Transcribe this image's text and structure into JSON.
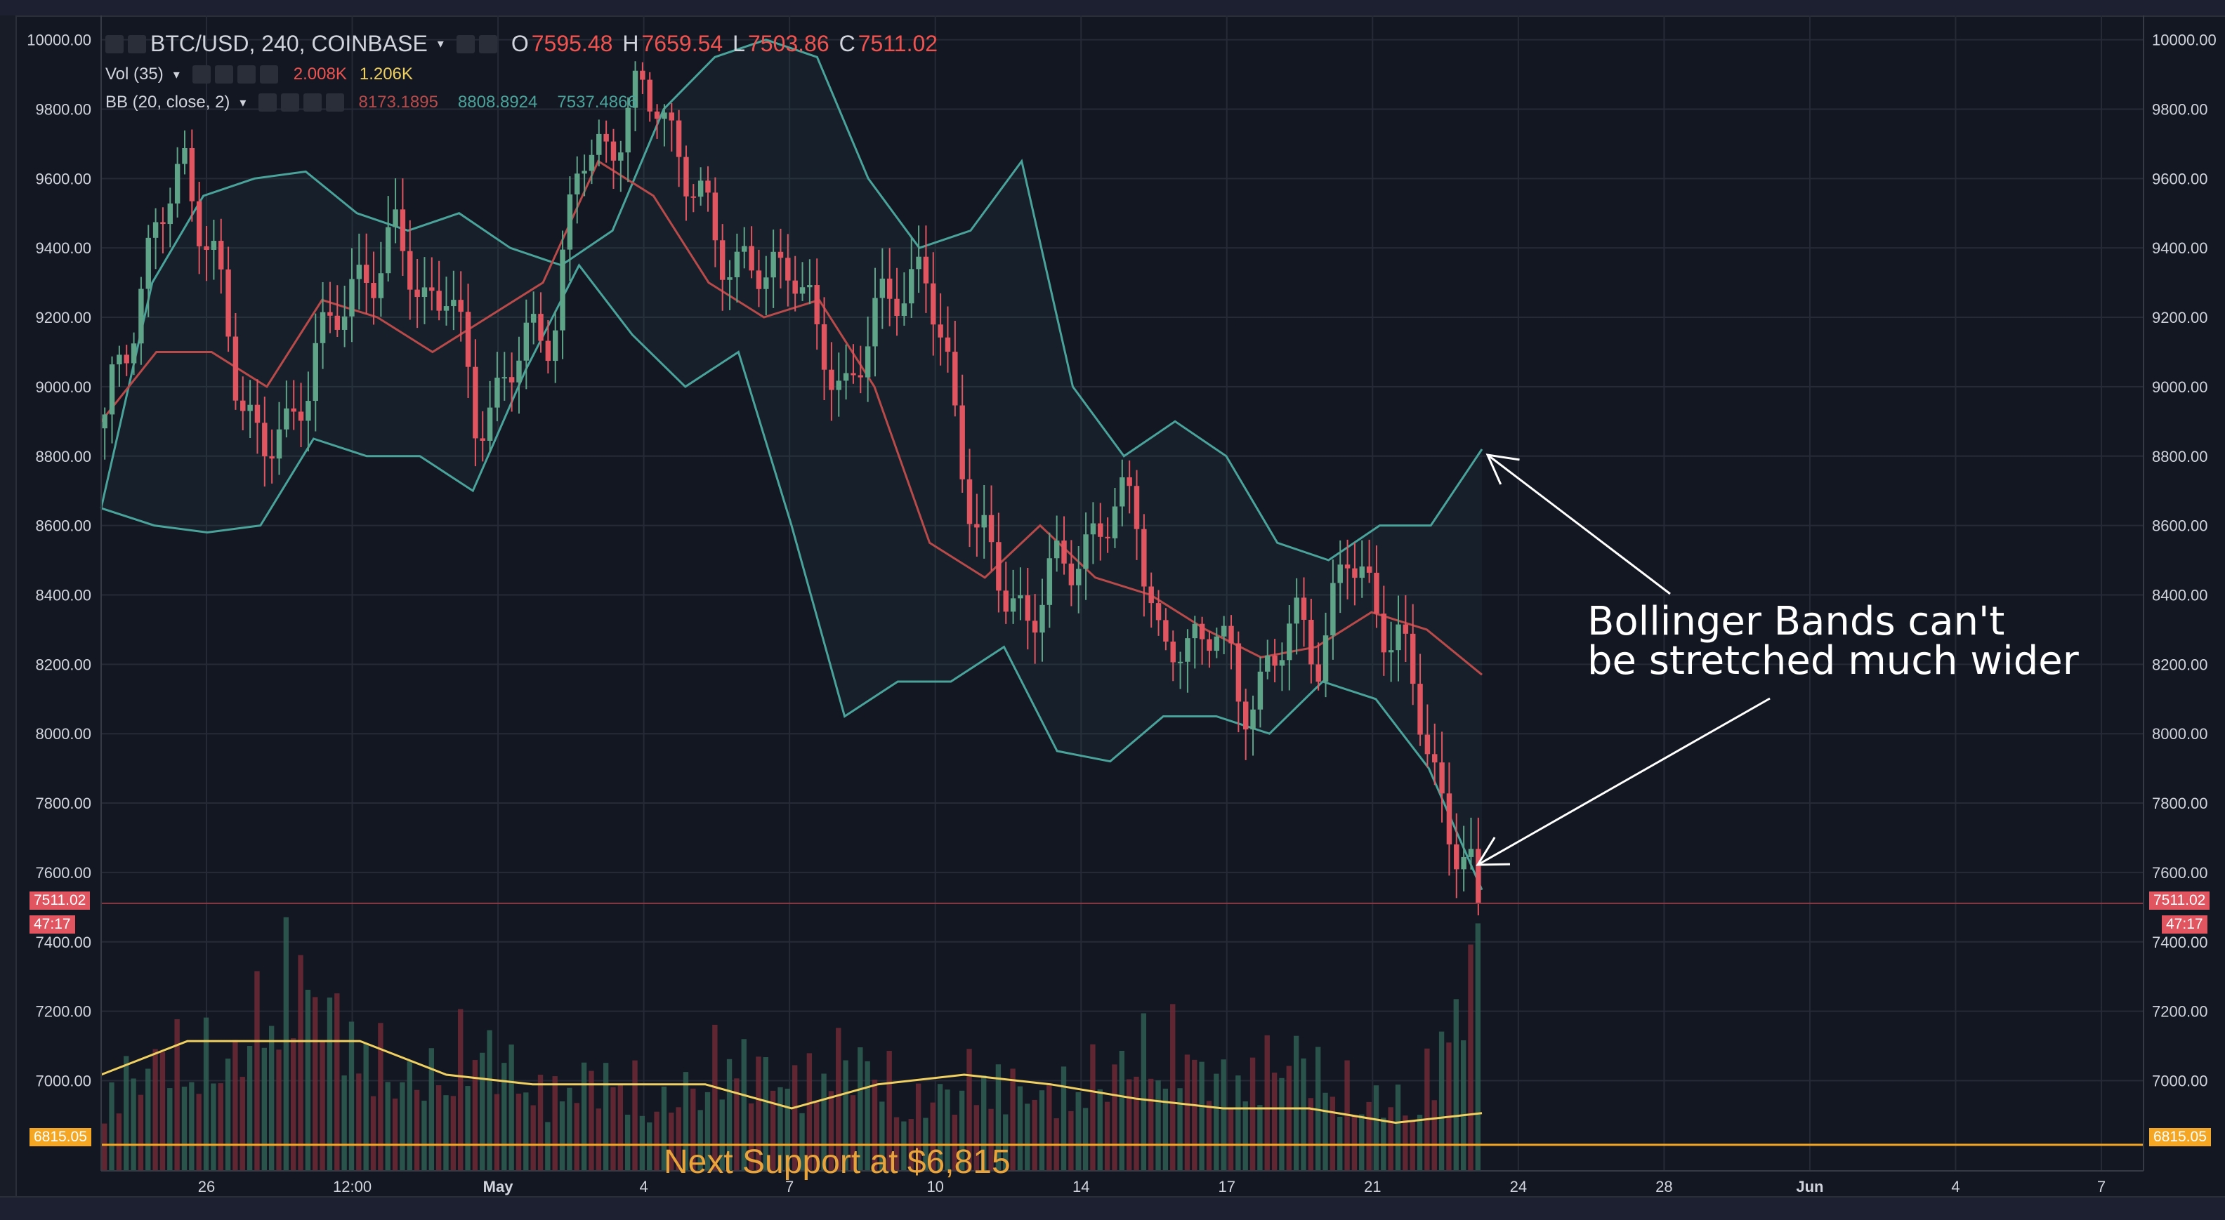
{
  "header": {
    "symbol": "BTC/USD, 240, COINBASE",
    "o_label": "O",
    "o_value": "7595.48",
    "h_label": "H",
    "h_value": "7659.54",
    "l_label": "L",
    "l_value": "7503.86",
    "c_label": "C",
    "c_value": "7511.02"
  },
  "volume_legend": {
    "label": "Vol (35)",
    "value1": "2.008K",
    "value2": "1.206K"
  },
  "bb_legend": {
    "label": "BB (20, close, 2)",
    "basis": "8173.1895",
    "upper": "8808.8924",
    "lower": "7537.4866"
  },
  "annotation": {
    "line1": "Bollinger Bands can't",
    "line2": "be stretched much wider"
  },
  "support_text": "Next Support at $6,815",
  "price_tags": {
    "last_price": "7511.02",
    "countdown": "47:17",
    "support": "6815.05"
  },
  "colors": {
    "up": "#5fa389",
    "down": "#e05560",
    "band": "#4aa39a",
    "basis": "#b84a4a",
    "vol_ma": "#f0d060",
    "support": "#f5a623",
    "background": "#131722",
    "grid": "#262a36"
  },
  "chart_data": {
    "type": "candlestick",
    "x_tick_labels": [
      "26",
      "12:00",
      "May",
      "4",
      "7",
      "10",
      "14",
      "17",
      "21",
      "24",
      "28",
      "Jun",
      "4",
      "7"
    ],
    "y_tick_labels": [
      "10000.00",
      "9800.00",
      "9600.00",
      "9400.00",
      "9200.00",
      "9000.00",
      "8800.00",
      "8600.00",
      "8400.00",
      "8200.00",
      "8000.00",
      "7800.00",
      "7600.00",
      "7400.00",
      "7200.00",
      "7000.00"
    ],
    "ylim": [
      6740,
      10070
    ],
    "grid": true,
    "series": [
      {
        "name": "price",
        "kind": "close-path",
        "values": [
          8880,
          9200,
          9450,
          9650,
          9400,
          9000,
          8850,
          8830,
          9150,
          9200,
          9350,
          9420,
          9250,
          9300,
          8900,
          9000,
          9120,
          9200,
          9650,
          9700,
          9800,
          9850,
          9600,
          9450,
          9350,
          9300,
          9400,
          9100,
          9000,
          9150,
          9300,
          9330,
          9000,
          8600,
          8400,
          8350,
          8450,
          8550,
          8600,
          8700,
          8200,
          8250,
          8350,
          8050,
          8200,
          8300,
          8250,
          8500,
          8400,
          8250,
          8000,
          7700,
          7511
        ]
      },
      {
        "name": "BB upper",
        "kind": "line",
        "values": [
          8650,
          9300,
          9550,
          9600,
          9620,
          9500,
          9450,
          9500,
          9400,
          9350,
          9450,
          9800,
          9950,
          10000,
          9950,
          9600,
          9400,
          9450,
          9650,
          9000,
          8800,
          8900,
          8800,
          8550,
          8500,
          8600,
          8600,
          8820
        ]
      },
      {
        "name": "BB basis",
        "kind": "line",
        "values": [
          8900,
          9100,
          9100,
          9000,
          9250,
          9200,
          9100,
          9200,
          9300,
          9650,
          9550,
          9300,
          9200,
          9250,
          9000,
          8550,
          8450,
          8600,
          8450,
          8400,
          8300,
          8220,
          8250,
          8350,
          8300,
          8170
        ]
      },
      {
        "name": "BB lower",
        "kind": "line",
        "values": [
          8650,
          8600,
          8580,
          8600,
          8850,
          8800,
          8800,
          8700,
          9050,
          9350,
          9150,
          9000,
          9100,
          8600,
          8050,
          8150,
          8150,
          8250,
          7950,
          7920,
          8050,
          8050,
          8000,
          8150,
          8100,
          7900,
          7550
        ]
      },
      {
        "name": "volume",
        "kind": "bars",
        "values": [
          0.35,
          0.55,
          0.5,
          0.95,
          0.6,
          0.4,
          0.6,
          0.35,
          0.45,
          0.3,
          0.55,
          0.4,
          0.55,
          0.3,
          0.45,
          0.35,
          0.45,
          0.6,
          0.4,
          0.55,
          0.35,
          0.3,
          1.0
        ]
      },
      {
        "name": "volume MA",
        "kind": "line",
        "values": [
          0.2,
          0.27,
          0.27,
          0.27,
          0.2,
          0.18,
          0.18,
          0.18,
          0.13,
          0.18,
          0.2,
          0.18,
          0.15,
          0.13,
          0.13,
          0.1,
          0.12
        ]
      }
    ],
    "horizontal_lines": [
      {
        "value": 7511.02
      },
      {
        "value": 6815.05
      }
    ]
  }
}
